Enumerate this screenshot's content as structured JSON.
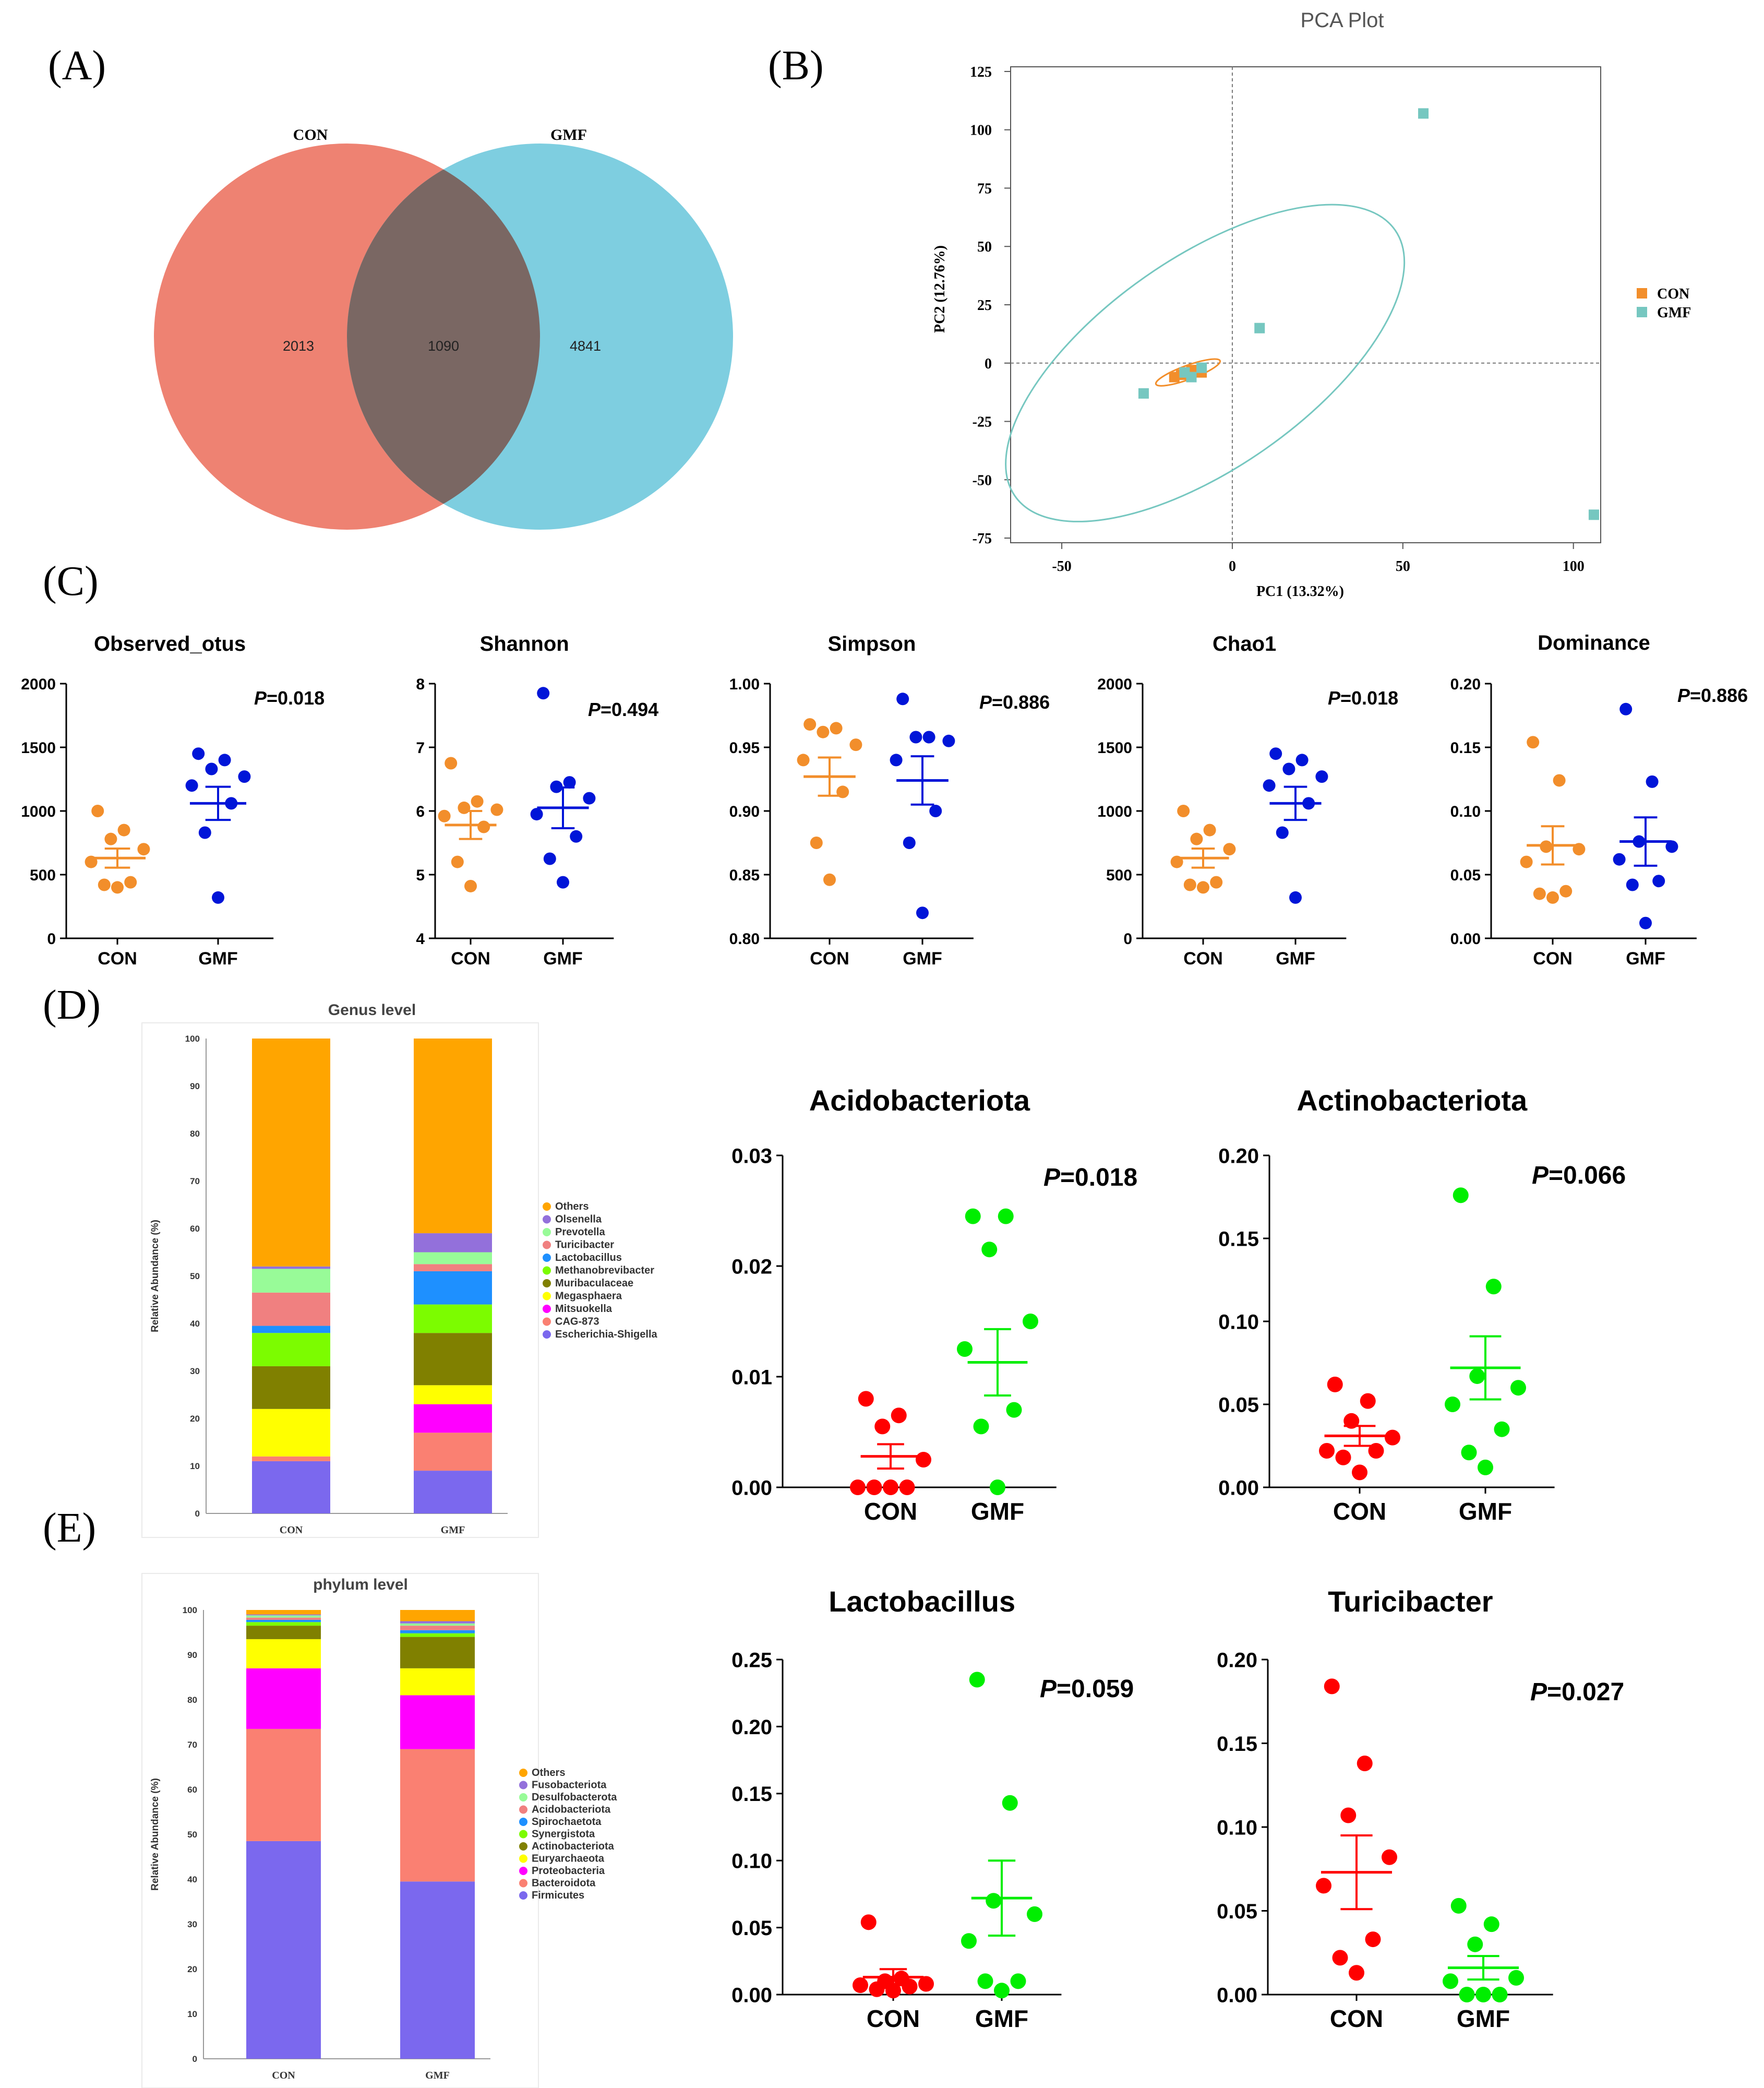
{
  "panel_labels": {
    "a": "(A)",
    "b": "(B)",
    "c": "(C)",
    "d": "(D)",
    "e": "(E)"
  },
  "venn": {
    "left_label": "CON",
    "right_label": "GMF",
    "left_only": "2013",
    "overlap": "1090",
    "right_only": "4841",
    "left_color": "#EE8272",
    "right_color": "#7ECEE0",
    "overlap_color": "#7A6763"
  },
  "chart_data": [
    {
      "id": "pca",
      "type": "scatter",
      "title": "PCA Plot",
      "xlabel": "PC1 (13.32%)",
      "ylabel": "PC2 (12.76%)",
      "xlim": [
        -65,
        108
      ],
      "ylim": [
        -77,
        127
      ],
      "xticks": [
        -50,
        0,
        50,
        100
      ],
      "yticks": [
        125,
        100,
        75,
        50,
        25,
        0,
        -25,
        -50,
        -75
      ],
      "legend_position": "right",
      "series": [
        {
          "name": "CON",
          "color": "#F28E2B",
          "x": [
            -17,
            -15,
            -13,
            -12,
            -10,
            -9
          ],
          "y": [
            -6,
            -5,
            -4,
            -3,
            -3,
            -4
          ]
        },
        {
          "name": "GMF",
          "color": "#76C7C0",
          "x": [
            -26,
            -14,
            -12,
            -9,
            8,
            56,
            106
          ],
          "y": [
            -13,
            -4,
            -6,
            -2,
            15,
            107,
            -65
          ]
        }
      ],
      "ellipses": [
        {
          "series": "GMF",
          "cx": -8,
          "cy": 0,
          "rx": 68,
          "ry": 45,
          "angle_deg": 35
        },
        {
          "series": "CON",
          "cx": -13,
          "cy": -4,
          "rx": 10,
          "ry": 3,
          "angle_deg": 20
        }
      ]
    },
    {
      "id": "observed_otus",
      "type": "scatter",
      "title": "Observed_otus",
      "pvalue": "P=0.018",
      "categories": [
        "CON",
        "GMF"
      ],
      "ylim": [
        0,
        2000
      ],
      "yticks": [
        "0",
        "500",
        "1000",
        "1500",
        "2000"
      ],
      "series": [
        {
          "name": "CON",
          "values": [
            400,
            420,
            440,
            600,
            700,
            780,
            850,
            1000
          ],
          "mean": 630,
          "sem": 75,
          "color": "#F28E2B"
        },
        {
          "name": "GMF",
          "values": [
            320,
            830,
            1060,
            1200,
            1270,
            1330,
            1400,
            1450
          ],
          "mean": 1060,
          "sem": 130,
          "color": "#0015D8"
        }
      ]
    },
    {
      "id": "shannon",
      "type": "scatter",
      "title": "Shannon",
      "pvalue": "P=0.494",
      "categories": [
        "CON",
        "GMF"
      ],
      "ylim": [
        4,
        8
      ],
      "yticks": [
        "4",
        "5",
        "6",
        "7",
        "8"
      ],
      "series": [
        {
          "name": "CON",
          "values": [
            4.82,
            5.2,
            5.75,
            5.92,
            6.02,
            6.05,
            6.15,
            6.75
          ],
          "mean": 5.78,
          "sem": 0.22,
          "color": "#F28E2B"
        },
        {
          "name": "GMF",
          "values": [
            4.88,
            5.25,
            5.6,
            5.95,
            6.2,
            6.38,
            6.45,
            7.85
          ],
          "mean": 6.05,
          "sem": 0.32,
          "color": "#0015D8"
        }
      ]
    },
    {
      "id": "simpson",
      "type": "scatter",
      "title": "Simpson",
      "pvalue": "P=0.886",
      "categories": [
        "CON",
        "GMF"
      ],
      "ylim": [
        0.8,
        1.0
      ],
      "yticks": [
        "0.80",
        "0.85",
        "0.90",
        "0.95",
        "1.00"
      ],
      "series": [
        {
          "name": "CON",
          "values": [
            0.846,
            0.875,
            0.915,
            0.94,
            0.952,
            0.962,
            0.965,
            0.968
          ],
          "mean": 0.927,
          "sem": 0.015,
          "color": "#F28E2B"
        },
        {
          "name": "GMF",
          "values": [
            0.82,
            0.875,
            0.9,
            0.94,
            0.955,
            0.958,
            0.958,
            0.988
          ],
          "mean": 0.924,
          "sem": 0.019,
          "color": "#0015D8"
        }
      ]
    },
    {
      "id": "chao1",
      "type": "scatter",
      "title": "Chao1",
      "pvalue": "P=0.018",
      "categories": [
        "CON",
        "GMF"
      ],
      "ylim": [
        0,
        2000
      ],
      "yticks": [
        "0",
        "500",
        "1000",
        "1500",
        "2000"
      ],
      "series": [
        {
          "name": "CON",
          "values": [
            400,
            420,
            440,
            600,
            700,
            780,
            850,
            1000
          ],
          "mean": 630,
          "sem": 75,
          "color": "#F28E2B"
        },
        {
          "name": "GMF",
          "values": [
            320,
            830,
            1060,
            1200,
            1270,
            1330,
            1400,
            1450
          ],
          "mean": 1060,
          "sem": 130,
          "color": "#0015D8"
        }
      ]
    },
    {
      "id": "dominance",
      "type": "scatter",
      "title": "Dominance",
      "pvalue": "P=0.886",
      "categories": [
        "CON",
        "GMF"
      ],
      "ylim": [
        0,
        0.2
      ],
      "yticks": [
        "0.00",
        "0.05",
        "0.10",
        "0.15",
        "0.20"
      ],
      "series": [
        {
          "name": "CON",
          "values": [
            0.032,
            0.035,
            0.037,
            0.06,
            0.07,
            0.072,
            0.124,
            0.154
          ],
          "mean": 0.073,
          "sem": 0.015,
          "color": "#F28E2B"
        },
        {
          "name": "GMF",
          "values": [
            0.012,
            0.042,
            0.045,
            0.062,
            0.072,
            0.076,
            0.123,
            0.18
          ],
          "mean": 0.076,
          "sem": 0.019,
          "color": "#0015D8"
        }
      ]
    },
    {
      "id": "genus",
      "type": "bar",
      "stacked": true,
      "title": "Genus level",
      "ylabel": "Relative Abundance (%)",
      "categories": [
        "CON",
        "GMF"
      ],
      "ylim": [
        0,
        100
      ],
      "yticks": [
        "0",
        "10",
        "20",
        "30",
        "40",
        "50",
        "60",
        "70",
        "80",
        "90",
        "100"
      ],
      "series": [
        {
          "name": "Escherichia-Shigella",
          "color": "#7B68EE",
          "values": [
            11,
            9
          ]
        },
        {
          "name": "CAG-873",
          "color": "#FA8072",
          "values": [
            1,
            8
          ]
        },
        {
          "name": "Mitsuokella",
          "color": "#FF00FF",
          "values": [
            0,
            6
          ]
        },
        {
          "name": "Megasphaera",
          "color": "#FFFF00",
          "values": [
            10,
            4
          ]
        },
        {
          "name": "Muribaculaceae",
          "color": "#808000",
          "values": [
            9,
            11
          ]
        },
        {
          "name": "Methanobrevibacter",
          "color": "#7CFC00",
          "values": [
            7,
            6
          ]
        },
        {
          "name": "Lactobacillus",
          "color": "#1E90FF",
          "values": [
            1.5,
            7
          ]
        },
        {
          "name": "Turicibacter",
          "color": "#F08080",
          "values": [
            7,
            1.5
          ]
        },
        {
          "name": "Prevotella",
          "color": "#98FB98",
          "values": [
            5,
            2.5
          ]
        },
        {
          "name": "Olsenella",
          "color": "#9370DB",
          "values": [
            0.5,
            4
          ]
        },
        {
          "name": "Others",
          "color": "#FFA500",
          "values": [
            48,
            41
          ]
        }
      ],
      "legend_order": [
        "Others",
        "Olsenella",
        "Prevotella",
        "Turicibacter",
        "Lactobacillus",
        "Methanobrevibacter",
        "Muribaculaceae",
        "Megasphaera",
        "Mitsuokella",
        "CAG-873",
        "Escherichia-Shigella"
      ]
    },
    {
      "id": "phylum",
      "type": "bar",
      "stacked": true,
      "title": "phylum level",
      "ylabel": "Relative Abundance (%)",
      "categories": [
        "CON",
        "GMF"
      ],
      "ylim": [
        0,
        100
      ],
      "yticks": [
        "0",
        "10",
        "20",
        "30",
        "40",
        "50",
        "60",
        "70",
        "80",
        "90",
        "100"
      ],
      "series": [
        {
          "name": "Firmicutes",
          "color": "#7B68EE",
          "values": [
            48.5,
            39.5
          ]
        },
        {
          "name": "Bacteroidota",
          "color": "#FA8072",
          "values": [
            25,
            29.5
          ]
        },
        {
          "name": "Proteobacteria",
          "color": "#FF00FF",
          "values": [
            13.5,
            12
          ]
        },
        {
          "name": "Euryarchaeota",
          "color": "#FFFF00",
          "values": [
            6.5,
            6
          ]
        },
        {
          "name": "Actinobacteriota",
          "color": "#808000",
          "values": [
            3,
            7
          ]
        },
        {
          "name": "Synergistota",
          "color": "#7CFC00",
          "values": [
            0.8,
            0.8
          ]
        },
        {
          "name": "Spirochaetota",
          "color": "#1E90FF",
          "values": [
            0.5,
            0.7
          ]
        },
        {
          "name": "Acidobacteriota",
          "color": "#F08080",
          "values": [
            0.5,
            1
          ]
        },
        {
          "name": "Desulfobacterota",
          "color": "#98FB98",
          "values": [
            0.5,
            0.5
          ]
        },
        {
          "name": "Fusobacteriota",
          "color": "#9370DB",
          "values": [
            0.2,
            0.5
          ]
        },
        {
          "name": "Others",
          "color": "#FFA500",
          "values": [
            1,
            2.5
          ]
        }
      ],
      "legend_order": [
        "Others",
        "Fusobacteriota",
        "Desulfobacterota",
        "Acidobacteriota",
        "Spirochaetota",
        "Synergistota",
        "Actinobacteriota",
        "Euryarchaeota",
        "Proteobacteria",
        "Bacteroidota",
        "Firmicutes"
      ]
    },
    {
      "id": "acidobacteriota",
      "type": "scatter",
      "title": "Acidobacteriota",
      "pvalue": "P=0.018",
      "categories": [
        "CON",
        "GMF"
      ],
      "ylim": [
        0,
        0.03
      ],
      "yticks": [
        "0.00",
        "0.01",
        "0.02",
        "0.03"
      ],
      "series": [
        {
          "name": "CON",
          "values": [
            0,
            0,
            0,
            0,
            0.0025,
            0.0055,
            0.0065,
            0.008
          ],
          "mean": 0.0028,
          "sem": 0.0011,
          "color": "#FF0000"
        },
        {
          "name": "GMF",
          "values": [
            0,
            0.0055,
            0.007,
            0.0125,
            0.015,
            0.0215,
            0.0245,
            0.0245
          ],
          "mean": 0.0113,
          "sem": 0.003,
          "color": "#00EE00"
        }
      ]
    },
    {
      "id": "actinobacteriota",
      "type": "scatter",
      "title": "Actinobacteriota",
      "pvalue": "P=0.066",
      "categories": [
        "CON",
        "GMF"
      ],
      "ylim": [
        0,
        0.2
      ],
      "yticks": [
        "0.00",
        "0.05",
        "0.10",
        "0.15",
        "0.20"
      ],
      "series": [
        {
          "name": "CON",
          "values": [
            0.009,
            0.018,
            0.022,
            0.022,
            0.03,
            0.04,
            0.052,
            0.062
          ],
          "mean": 0.031,
          "sem": 0.006,
          "color": "#FF0000"
        },
        {
          "name": "GMF",
          "values": [
            0.012,
            0.021,
            0.035,
            0.05,
            0.06,
            0.067,
            0.121,
            0.176
          ],
          "mean": 0.072,
          "sem": 0.019,
          "color": "#00EE00"
        }
      ]
    },
    {
      "id": "lactobacillus",
      "type": "scatter",
      "title": "Lactobacillus",
      "pvalue": "P=0.059",
      "categories": [
        "CON",
        "GMF"
      ],
      "ylim": [
        0,
        0.25
      ],
      "yticks": [
        "0.00",
        "0.05",
        "0.10",
        "0.15",
        "0.20",
        "0.25"
      ],
      "series": [
        {
          "name": "CON",
          "values": [
            0.003,
            0.004,
            0.006,
            0.007,
            0.008,
            0.01,
            0.012,
            0.054
          ],
          "mean": 0.013,
          "sem": 0.006,
          "color": "#FF0000"
        },
        {
          "name": "GMF",
          "values": [
            0.003,
            0.01,
            0.01,
            0.04,
            0.06,
            0.07,
            0.143,
            0.235
          ],
          "mean": 0.072,
          "sem": 0.028,
          "color": "#00EE00"
        }
      ]
    },
    {
      "id": "turicibacter",
      "type": "scatter",
      "title": "Turicibacter",
      "pvalue": "P=0.027",
      "categories": [
        "CON",
        "GMF"
      ],
      "ylim": [
        0,
        0.2
      ],
      "yticks": [
        "0.00",
        "0.05",
        "0.10",
        "0.15",
        "0.20"
      ],
      "series": [
        {
          "name": "CON",
          "values": [
            0.013,
            0.022,
            0.033,
            0.065,
            0.082,
            0.107,
            0.138,
            0.184
          ],
          "mean": 0.073,
          "sem": 0.022,
          "color": "#FF0000"
        },
        {
          "name": "GMF",
          "values": [
            0,
            0,
            0,
            0.008,
            0.01,
            0.03,
            0.042,
            0.053
          ],
          "mean": 0.016,
          "sem": 0.007,
          "color": "#00EE00"
        }
      ]
    }
  ]
}
